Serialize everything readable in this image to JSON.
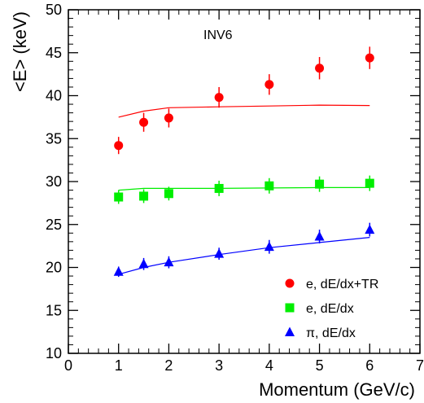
{
  "chart_data": {
    "type": "scatter",
    "annotation": "INV6",
    "xlabel": "Momentum (GeV/c)",
    "ylabel": "<E> (keV)",
    "xlim": [
      0,
      7
    ],
    "ylim": [
      10,
      50
    ],
    "x_ticks": [
      "0",
      "1",
      "2",
      "3",
      "4",
      "5",
      "6",
      "7"
    ],
    "y_ticks": [
      "10",
      "15",
      "20",
      "25",
      "30",
      "35",
      "40",
      "45",
      "50"
    ],
    "grid": false,
    "legend_position": "bottom-right",
    "series": [
      {
        "name": "e, dE/dx+TR",
        "marker": "circle",
        "color": "#ff0000",
        "x": [
          1,
          1.5,
          2,
          3,
          4,
          5,
          6
        ],
        "y": [
          34.2,
          36.9,
          37.4,
          39.8,
          41.3,
          43.2,
          44.4
        ],
        "err": [
          1.0,
          1.1,
          1.1,
          1.2,
          1.2,
          1.3,
          1.3
        ],
        "fit": {
          "x": [
            1,
            1.5,
            2,
            3,
            4,
            5,
            6
          ],
          "y": [
            37.5,
            38.2,
            38.6,
            38.7,
            38.8,
            38.9,
            38.85
          ]
        }
      },
      {
        "name": "e, dE/dx",
        "marker": "square",
        "color": "#00ee00",
        "x": [
          1,
          1.5,
          2,
          3,
          4,
          5,
          6
        ],
        "y": [
          28.2,
          28.3,
          28.6,
          29.2,
          29.5,
          29.7,
          29.8
        ],
        "err": [
          0.8,
          0.8,
          0.8,
          0.9,
          0.9,
          0.9,
          0.9
        ],
        "fit": {
          "x": [
            1,
            1.5,
            2,
            3,
            4,
            5,
            6
          ],
          "y": [
            29.0,
            29.2,
            29.2,
            29.2,
            29.25,
            29.3,
            29.3
          ]
        }
      },
      {
        "name": "π, dE/dx",
        "marker": "triangle",
        "color": "#0000ff",
        "x": [
          1,
          1.5,
          2,
          3,
          4,
          5,
          6
        ],
        "y": [
          19.5,
          20.4,
          20.6,
          21.6,
          22.4,
          23.6,
          24.4
        ],
        "err": [
          0.6,
          0.7,
          0.7,
          0.7,
          0.8,
          0.8,
          0.8
        ],
        "fit": {
          "x": [
            1,
            1.5,
            2,
            3,
            4,
            5,
            6
          ],
          "y": [
            19.2,
            20.0,
            20.6,
            21.5,
            22.3,
            22.9,
            23.5
          ]
        }
      }
    ]
  }
}
